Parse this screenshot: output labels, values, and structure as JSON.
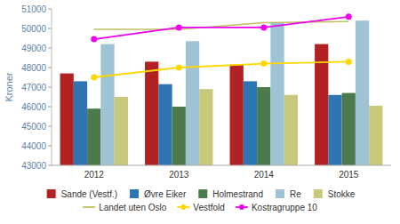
{
  "chart_data": {
    "type": "bar",
    "categories": [
      "2012",
      "2013",
      "2014",
      "2015"
    ],
    "y_label": "Kroner",
    "ylim": [
      43000,
      51000
    ],
    "yticks": [
      43000,
      44000,
      45000,
      46000,
      47000,
      48000,
      49000,
      50000,
      51000
    ],
    "grid": false,
    "legend": "bottom",
    "series": [
      {
        "name": "Sande (Vestf.)",
        "type": "bar",
        "color": "#B22222",
        "values": [
          47700,
          48300,
          48150,
          49200
        ]
      },
      {
        "name": "Øvre Eiker",
        "type": "bar",
        "color": "#2E75B6",
        "values": [
          47300,
          47150,
          47300,
          46600
        ]
      },
      {
        "name": "Holmestrand",
        "type": "bar",
        "color": "#4D7A4D",
        "values": [
          45900,
          46000,
          47000,
          46700
        ]
      },
      {
        "name": "Re",
        "type": "bar",
        "color": "#9DC3D4",
        "values": [
          49200,
          49350,
          50300,
          50400
        ]
      },
      {
        "name": "Stokke",
        "type": "bar",
        "color": "#C8C87A",
        "values": [
          46500,
          46900,
          46600,
          46050
        ]
      },
      {
        "name": "Landet uten Oslo",
        "type": "line",
        "marker": "none",
        "color": "#BFBF60",
        "values": [
          49950,
          49950,
          50300,
          50350
        ]
      },
      {
        "name": "Vestfold",
        "type": "line",
        "marker": "circle",
        "color": "#FFD700",
        "values": [
          47500,
          48000,
          48200,
          48300
        ]
      },
      {
        "name": "Kostragruppe 10",
        "type": "line",
        "marker": "circle",
        "color": "#EE00EE",
        "values": [
          49450,
          50050,
          50050,
          50600
        ]
      }
    ]
  }
}
